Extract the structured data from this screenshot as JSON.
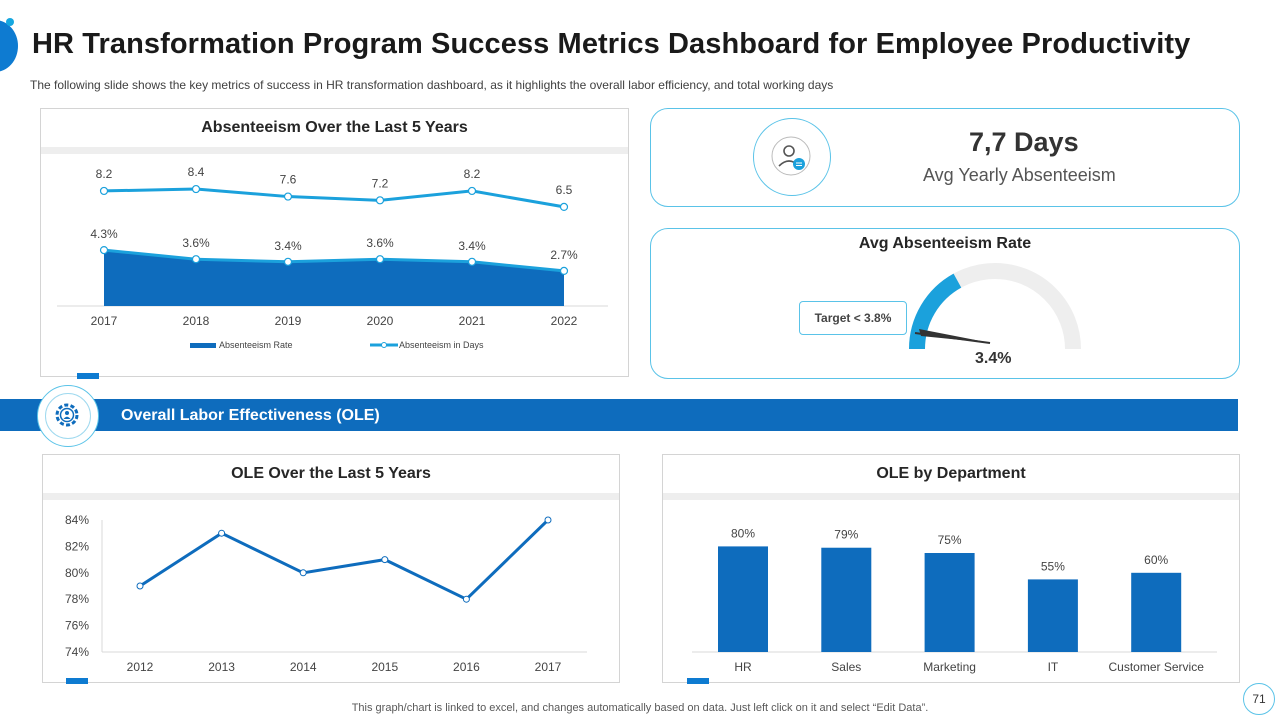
{
  "page": {
    "title": "HR Transformation Program Success Metrics Dashboard for Employee Productivity",
    "subtitle": "The following  slide shows the key metrics of success in HR transformation  dashboard,  as it highlights the overall  labor efficiency,  and total working days",
    "footer": "This graph/chart is linked to excel,  and changes automatically based on data. Just left click on it and select “Edit Data”.",
    "page_number": "71"
  },
  "colors": {
    "primary": "#0e6cbd",
    "light_blue": "#1ba1dc",
    "accent_border": "#5ac3e8",
    "gauge_track": "#eeeeee"
  },
  "kpi": {
    "value": "7,7 Days",
    "label": "Avg Yearly Absenteeism",
    "icon": "user-group-icon"
  },
  "gauge": {
    "title": "Avg Absenteeism Rate",
    "target_label": "Target < 3.8%",
    "value_label": "3.4%",
    "value": 3.4,
    "max": 10
  },
  "section": {
    "label": "Overall Labor Effectiveness  (OLE)",
    "icon": "gear-people-icon"
  },
  "chart_data": [
    {
      "type": "area+line",
      "title": "Absenteeism Over the Last 5 Years",
      "categories": [
        "2017",
        "2018",
        "2019",
        "2020",
        "2021",
        "2022"
      ],
      "series": [
        {
          "name": "Absenteeism Rate",
          "type": "area",
          "values": [
            4.3,
            3.6,
            3.4,
            3.6,
            3.4,
            2.7
          ],
          "labels": [
            "4.3%",
            "3.6%",
            "3.4%",
            "3.6%",
            "3.4%",
            "2.7%"
          ]
        },
        {
          "name": "Absenteeism in Days",
          "type": "line",
          "values": [
            8.2,
            8.4,
            7.6,
            7.2,
            8.2,
            6.5
          ],
          "labels": [
            "8.2",
            "8.4",
            "7.6",
            "7.2",
            "8.2",
            "6.5"
          ]
        }
      ],
      "legend": [
        "Absenteeism Rate",
        "Absenteeism in Days"
      ]
    },
    {
      "type": "line",
      "title": "OLE Over the Last 5 Years",
      "x": [
        "2012",
        "2013",
        "2014",
        "2015",
        "2016",
        "2017"
      ],
      "values": [
        79,
        83,
        80,
        81,
        78,
        84
      ],
      "ylim": [
        74,
        84
      ],
      "yticks": [
        "84%",
        "82%",
        "80%",
        "78%",
        "76%",
        "74%"
      ]
    },
    {
      "type": "bar",
      "title": "OLE by Department",
      "categories": [
        "HR",
        "Sales",
        "Marketing",
        "IT",
        "Customer Service"
      ],
      "values": [
        80,
        79,
        75,
        55,
        60
      ],
      "labels": [
        "80%",
        "79%",
        "75%",
        "55%",
        "60%"
      ]
    }
  ]
}
